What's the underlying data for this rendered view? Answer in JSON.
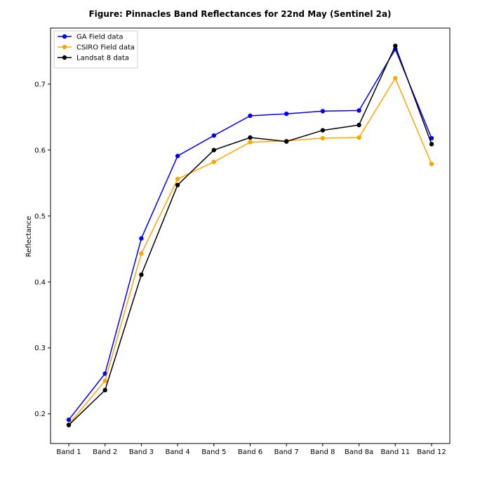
{
  "chart_data": {
    "type": "line",
    "title": "Figure: Pinnacles Band Reflectances for 22nd May (Sentinel 2a)",
    "xlabel": "",
    "ylabel": "Reflectance",
    "categories": [
      "Band 1",
      "Band 2",
      "Band 3",
      "Band 4",
      "Band 5",
      "Band 6",
      "Band 7",
      "Band 8",
      "Band 8a",
      "Band 11",
      "Band 12"
    ],
    "ylim": [
      0.155,
      0.785
    ],
    "yticks": [
      "0.2",
      "0.3",
      "0.4",
      "0.5",
      "0.6",
      "0.7"
    ],
    "grid": false,
    "legend_position": "upper left",
    "series": [
      {
        "name": "GA Field data",
        "color": "#0000ff",
        "values": [
          0.191,
          0.261,
          0.466,
          0.591,
          0.622,
          0.652,
          0.655,
          0.659,
          0.66,
          0.753,
          0.618
        ]
      },
      {
        "name": "CSIRO Field data",
        "color": "#ffa500",
        "values": [
          0.184,
          0.25,
          0.443,
          0.556,
          0.582,
          0.612,
          0.614,
          0.618,
          0.619,
          0.709,
          0.579
        ]
      },
      {
        "name": "Landsat 8 data",
        "color": "#000000",
        "values": [
          0.183,
          0.236,
          0.411,
          0.547,
          0.6,
          0.619,
          0.613,
          0.63,
          0.638,
          0.758,
          0.609
        ]
      }
    ]
  }
}
